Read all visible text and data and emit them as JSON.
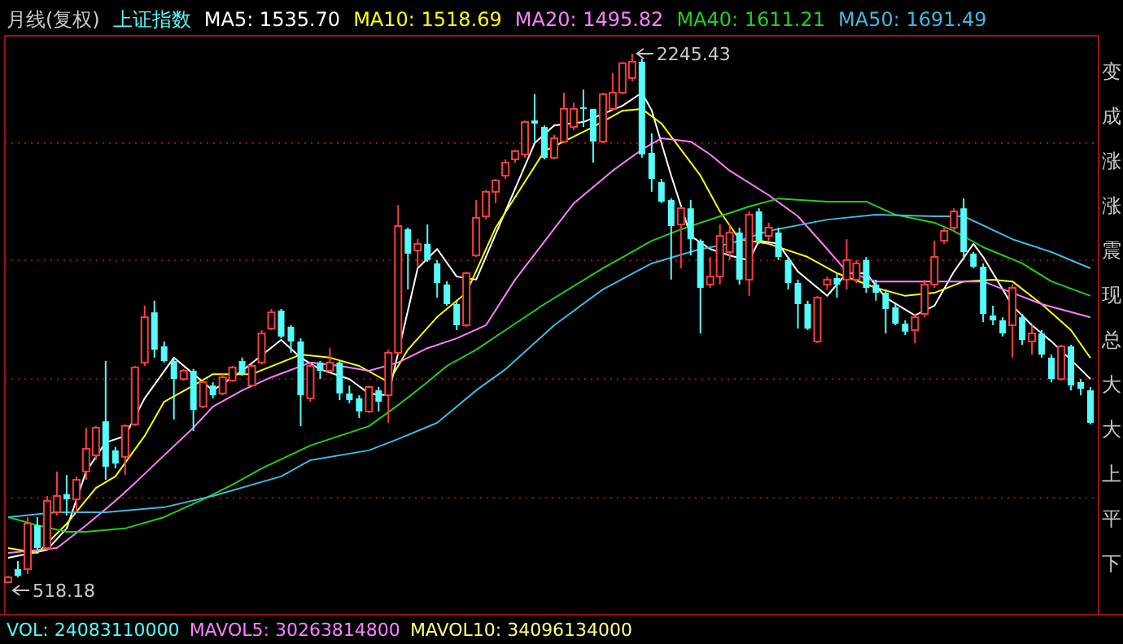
{
  "chart_data": {
    "type": "candlestick",
    "title": "月线(复权)",
    "subtitle": "上证指数",
    "categories": [
      null,
      null,
      null,
      null,
      null,
      null,
      null,
      null,
      null,
      null,
      null,
      null,
      null,
      null,
      null,
      null,
      null,
      null,
      null,
      null,
      null,
      null,
      null,
      null,
      null,
      null,
      null,
      null,
      null,
      null,
      null,
      null,
      null,
      null,
      null,
      null,
      null,
      null,
      null,
      null,
      null,
      null,
      null,
      null,
      null,
      null,
      null,
      null,
      null,
      null,
      null,
      null,
      null,
      null,
      null,
      null,
      null,
      null,
      null,
      null,
      null,
      null,
      null,
      null,
      null,
      null,
      null,
      null,
      null,
      null,
      null,
      null,
      null,
      null,
      null,
      null,
      null,
      null,
      null,
      null,
      null,
      null,
      null,
      null,
      null,
      null,
      null,
      null,
      null,
      null,
      null,
      null,
      null,
      null,
      null,
      null,
      null,
      null,
      null,
      null,
      null,
      null,
      null,
      null,
      null,
      null,
      null,
      null,
      null,
      null,
      null,
      null
    ],
    "ohlc": [
      [
        518.18,
        539,
        518.18,
        534
      ],
      [
        561,
        587,
        534,
        539
      ],
      [
        561,
        731,
        545,
        710
      ],
      [
        704,
        731,
        625,
        630
      ],
      [
        630,
        800,
        624,
        784
      ],
      [
        747,
        880,
        736,
        800
      ],
      [
        806,
        869,
        736,
        789
      ],
      [
        789,
        864,
        747,
        853
      ],
      [
        880,
        1023,
        853,
        954
      ],
      [
        933,
        1029,
        917,
        1023
      ],
      [
        1044,
        1241,
        853,
        895
      ],
      [
        949,
        960,
        890,
        906
      ],
      [
        928,
        1034,
        869,
        1029
      ],
      [
        1034,
        1225,
        1029,
        1220
      ],
      [
        1236,
        1422,
        1225,
        1384
      ],
      [
        1400,
        1438,
        1252,
        1278
      ],
      [
        1289,
        1305,
        1236,
        1241
      ],
      [
        1241,
        1252,
        1050,
        1182
      ],
      [
        1182,
        1215,
        1177,
        1209
      ],
      [
        1209,
        1215,
        1012,
        1081
      ],
      [
        1092,
        1177,
        1087,
        1172
      ],
      [
        1161,
        1172,
        1119,
        1129
      ],
      [
        1135,
        1198,
        1129,
        1188
      ],
      [
        1177,
        1225,
        1172,
        1220
      ],
      [
        1241,
        1252,
        1193,
        1198
      ],
      [
        1161,
        1230,
        1156,
        1225
      ],
      [
        1236,
        1342,
        1230,
        1331
      ],
      [
        1347,
        1411,
        1342,
        1400
      ],
      [
        1406,
        1411,
        1315,
        1321
      ],
      [
        1353,
        1358,
        1268,
        1305
      ],
      [
        1305,
        1315,
        1028,
        1129
      ],
      [
        1119,
        1236,
        1108,
        1225
      ],
      [
        1236,
        1241,
        1182,
        1209
      ],
      [
        1209,
        1283,
        1204,
        1236
      ],
      [
        1236,
        1241,
        1113,
        1135
      ],
      [
        1135,
        1161,
        1103,
        1113
      ],
      [
        1119,
        1129,
        1055,
        1076
      ],
      [
        1076,
        1161,
        1071,
        1156
      ],
      [
        1145,
        1156,
        1076,
        1108
      ],
      [
        1129,
        1278,
        1039,
        1268
      ],
      [
        1268,
        1751,
        1262,
        1682
      ],
      [
        1672,
        1677,
        1475,
        1592
      ],
      [
        1602,
        1640,
        1549,
        1624
      ],
      [
        1624,
        1687,
        1565,
        1571
      ],
      [
        1560,
        1571,
        1448,
        1496
      ],
      [
        1491,
        1502,
        1422,
        1427
      ],
      [
        1427,
        1438,
        1342,
        1358
      ],
      [
        1358,
        1533,
        1353,
        1528
      ],
      [
        1586,
        1767,
        1581,
        1709
      ],
      [
        1714,
        1799,
        1704,
        1794
      ],
      [
        1794,
        1836,
        1757,
        1831
      ],
      [
        1847,
        1900,
        1836,
        1889
      ],
      [
        1900,
        1932,
        1889,
        1927
      ],
      [
        1916,
        2027,
        1905,
        2022
      ],
      [
        2027,
        2113,
        1958,
        2017
      ],
      [
        2006,
        2011,
        1900,
        1905
      ],
      [
        1905,
        1980,
        1900,
        1969
      ],
      [
        1958,
        2118,
        1953,
        2065
      ],
      [
        2006,
        2086,
        1996,
        2065
      ],
      [
        2070,
        2128,
        2006,
        2065
      ],
      [
        2065,
        2065,
        1889,
        1958
      ],
      [
        1958,
        2118,
        1953,
        2113
      ],
      [
        2065,
        2182,
        2060,
        2118
      ],
      [
        2118,
        2219,
        2113,
        2214
      ],
      [
        2166,
        2245.43,
        2155,
        2219
      ],
      [
        2219,
        2229,
        1905,
        1916
      ],
      [
        1921,
        1985,
        1794,
        1836
      ],
      [
        1826,
        1836,
        1757,
        1762
      ],
      [
        1767,
        1773,
        1507,
        1682
      ],
      [
        1687,
        1746,
        1544,
        1740
      ],
      [
        1740,
        1767,
        1586,
        1639
      ],
      [
        1634,
        1639,
        1331,
        1480
      ],
      [
        1491,
        1581,
        1480,
        1517
      ],
      [
        1517,
        1687,
        1491,
        1650
      ],
      [
        1597,
        1687,
        1571,
        1661
      ],
      [
        1661,
        1677,
        1491,
        1507
      ],
      [
        1507,
        1730,
        1454,
        1719
      ],
      [
        1730,
        1740,
        1624,
        1634
      ],
      [
        1650,
        1693,
        1634,
        1677
      ],
      [
        1661,
        1677,
        1571,
        1581
      ],
      [
        1571,
        1581,
        1475,
        1496
      ],
      [
        1496,
        1507,
        1347,
        1427
      ],
      [
        1427,
        1438,
        1342,
        1347
      ],
      [
        1305,
        1454,
        1299,
        1448
      ],
      [
        1491,
        1517,
        1475,
        1507
      ],
      [
        1512,
        1528,
        1448,
        1491
      ],
      [
        1507,
        1639,
        1475,
        1571
      ],
      [
        1507,
        1571,
        1496,
        1560
      ],
      [
        1571,
        1581,
        1464,
        1480
      ],
      [
        1491,
        1507,
        1438,
        1464
      ],
      [
        1464,
        1475,
        1331,
        1411
      ],
      [
        1416,
        1427,
        1358,
        1363
      ],
      [
        1363,
        1374,
        1326,
        1337
      ],
      [
        1342,
        1395,
        1299,
        1384
      ],
      [
        1395,
        1507,
        1384,
        1491
      ],
      [
        1491,
        1634,
        1480,
        1581
      ],
      [
        1634,
        1677,
        1624,
        1666
      ],
      [
        1677,
        1740,
        1666,
        1730
      ],
      [
        1740,
        1773,
        1571,
        1597
      ],
      [
        1592,
        1597,
        1544,
        1549
      ],
      [
        1549,
        1560,
        1368,
        1395
      ],
      [
        1390,
        1422,
        1358,
        1374
      ],
      [
        1374,
        1384,
        1321,
        1331
      ],
      [
        1358,
        1491,
        1252,
        1480
      ],
      [
        1384,
        1395,
        1294,
        1310
      ],
      [
        1305,
        1358,
        1262,
        1331
      ],
      [
        1331,
        1342,
        1252,
        1262
      ],
      [
        1252,
        1262,
        1172,
        1182
      ],
      [
        1182,
        1294,
        1177,
        1289
      ],
      [
        1289,
        1294,
        1145,
        1161
      ],
      [
        1172,
        1182,
        1129,
        1150
      ],
      [
        1145,
        1156,
        1034,
        1039
      ]
    ],
    "series": [
      {
        "name": "MA5: 1535.70",
        "type": "line",
        "color": "#ffffff",
        "values": [
          598,
          null,
          null,
          null,
          624,
          null,
          694,
          null,
          880,
          null,
          975,
          null,
          996,
          null,
          1119,
          null,
          null,
          1252,
          null,
          null,
          null,
          1145,
          null,
          null,
          1209,
          null,
          null,
          null,
          1310,
          null,
          1252,
          null,
          1214,
          null,
          null,
          1182,
          null,
          1135,
          null,
          1129,
          1268,
          null,
          1544,
          null,
          1607,
          null,
          1517,
          null,
          1507,
          null,
          null,
          1730,
          null,
          null,
          1953,
          null,
          2011,
          null,
          null,
          2022,
          null,
          null,
          null,
          2075,
          null,
          2118,
          2060,
          null,
          1847,
          null,
          1650,
          null,
          1607,
          null,
          1586,
          null,
          1570,
          1634,
          null,
          1624,
          null,
          1533,
          null,
          null,
          1454,
          null,
          1528,
          null,
          1528,
          null,
          1448,
          null,
          null,
          1390,
          null,
          1422,
          null,
          1533,
          null,
          1624,
          1581,
          null,
          null,
          1422,
          null,
          1358,
          null,
          1305,
          null,
          null,
          1214,
          1182
        ]
      },
      {
        "name": "MA10: 1518.69",
        "type": "line",
        "color": "#ffff00",
        "values": [
          630,
          null,
          null,
          614,
          null,
          null,
          709,
          null,
          null,
          826,
          null,
          864,
          null,
          null,
          996,
          null,
          1108,
          null,
          null,
          1161,
          null,
          1198,
          null,
          null,
          null,
          1198,
          null,
          null,
          null,
          null,
          1262,
          null,
          null,
          1252,
          null,
          null,
          1225,
          null,
          null,
          1172,
          null,
          1278,
          null,
          null,
          1385,
          null,
          null,
          1464,
          null,
          null,
          1677,
          null,
          null,
          null,
          null,
          1927,
          null,
          null,
          null,
          null,
          2006,
          null,
          null,
          2059,
          null,
          2065,
          null,
          2017,
          null,
          null,
          null,
          1847,
          null,
          1730,
          null,
          1639,
          null,
          null,
          1624,
          null,
          null,
          null,
          1581,
          null,
          null,
          1528,
          null,
          null,
          null,
          1480,
          null,
          null,
          1454,
          null,
          null,
          1464,
          null,
          null,
          1501,
          null,
          null,
          1507,
          null,
          1501,
          null,
          null,
          1427,
          null,
          null,
          1342,
          null,
          1251
        ]
      },
      {
        "name": "MA20: 1495.82",
        "type": "line",
        "color": "#ff80ff",
        "values": [
          614,
          null,
          null,
          null,
          null,
          630,
          null,
          null,
          704,
          null,
          null,
          784,
          null,
          842,
          null,
          null,
          933,
          null,
          null,
          1023,
          null,
          1092,
          null,
          null,
          1145,
          null,
          null,
          1188,
          null,
          null,
          null,
          1236,
          null,
          null,
          1225,
          null,
          null,
          1209,
          null,
          null,
          1236,
          null,
          null,
          1283,
          null,
          null,
          1315,
          null,
          null,
          1358,
          null,
          null,
          1507,
          null,
          null,
          null,
          null,
          null,
          1756,
          null,
          null,
          null,
          1863,
          null,
          null,
          1932,
          null,
          1969,
          null,
          null,
          1958,
          null,
          1916,
          null,
          1863,
          null,
          null,
          null,
          1783,
          null,
          null,
          1714,
          null,
          null,
          1607,
          null,
          1533,
          null,
          null,
          1501,
          null,
          null,
          null,
          null,
          null,
          1501,
          null,
          null,
          null,
          null,
          1501,
          null,
          null,
          1464,
          null,
          null,
          1427,
          null,
          null,
          null,
          null,
          1384
        ]
      },
      {
        "name": "MA40: 1611.21",
        "type": "line",
        "color": "#20d020",
        "values": [
          731,
          null,
          null,
          704,
          null,
          null,
          683,
          null,
          683,
          null,
          null,
          null,
          694,
          null,
          null,
          null,
          731,
          null,
          null,
          null,
          789,
          null,
          null,
          837,
          null,
          null,
          890,
          null,
          null,
          null,
          null,
          965,
          null,
          null,
          null,
          null,
          null,
          1028,
          null,
          null,
          1097,
          null,
          null,
          1172,
          null,
          1225,
          null,
          null,
          1278,
          null,
          null,
          1342,
          null,
          null,
          null,
          1427,
          null,
          null,
          null,
          null,
          null,
          1544,
          null,
          null,
          null,
          null,
          1634,
          null,
          null,
          1671,
          null,
          null,
          null,
          1714,
          null,
          null,
          1746,
          null,
          null,
          1772,
          null,
          null,
          null,
          null,
          1762,
          null,
          null,
          null,
          1762,
          null,
          null,
          1719,
          null,
          null,
          null,
          1693,
          null,
          1666,
          null,
          null,
          1613,
          null,
          null,
          null,
          1560,
          null,
          null,
          1501,
          null,
          null,
          null,
          1454
        ]
      },
      {
        "name": "MA50: 1691.49",
        "type": "line",
        "color": "#40b8e0",
        "values": [
          731,
          null,
          null,
          null,
          null,
          747,
          null,
          null,
          null,
          null,
          747,
          null,
          null,
          null,
          null,
          null,
          763,
          null,
          null,
          null,
          null,
          800,
          null,
          null,
          null,
          null,
          null,
          null,
          864,
          null,
          null,
          917,
          null,
          null,
          null,
          null,
          null,
          949,
          null,
          null,
          986,
          null,
          null,
          null,
          1039,
          null,
          null,
          null,
          1145,
          null,
          null,
          1214,
          null,
          null,
          null,
          null,
          1358,
          null,
          null,
          null,
          null,
          1475,
          null,
          null,
          null,
          null,
          1560,
          null,
          null,
          null,
          null,
          1607,
          null,
          null,
          1624,
          null,
          null,
          null,
          1666,
          null,
          null,
          null,
          null,
          null,
          1703,
          null,
          null,
          null,
          null,
          1719,
          null,
          null,
          null,
          null,
          null,
          1714,
          null,
          null,
          1714,
          null,
          null,
          null,
          null,
          1639,
          null,
          null,
          null,
          1597,
          null,
          null,
          null,
          1544
        ]
      }
    ],
    "annotations": [
      "2245.43",
      "518.18",
      "VOL: 24083110000",
      "MAVOL5: 30263814800",
      "MAVOL10: 34096134000",
      "变",
      "成",
      "涨",
      "涨",
      "震",
      "现",
      "总",
      "大",
      "大",
      "上",
      "平",
      "下"
    ],
    "yticks": [
      {
        "value": 1953,
        "label": null
      },
      {
        "value": 1570,
        "label": null
      },
      {
        "value": 1182,
        "label": null
      },
      {
        "value": 794,
        "label": null
      }
    ],
    "grid": "y",
    "legend": "top"
  }
}
